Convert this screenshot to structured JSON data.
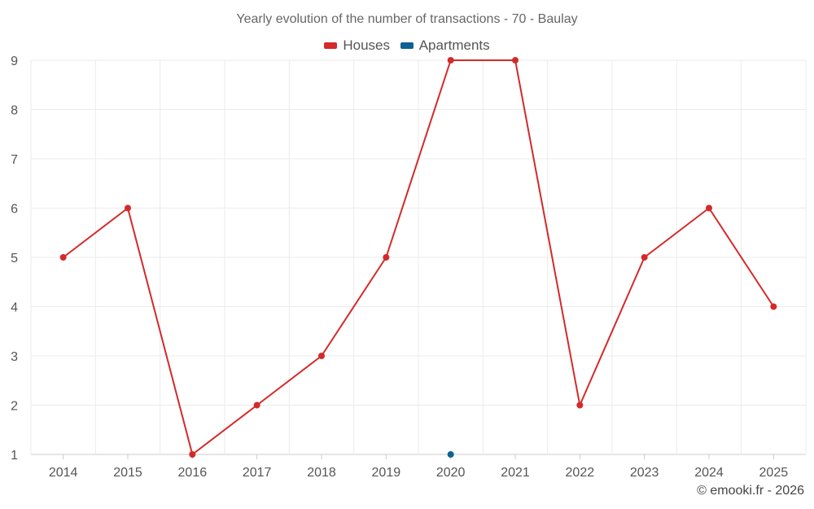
{
  "colors": {
    "houses": "#d32a2a",
    "apartments": "#0d6193",
    "grid": "#ebebeb",
    "axis": "#cccccc"
  },
  "chart_data": {
    "type": "line",
    "title": "Yearly evolution of the number of transactions - 70 - Baulay",
    "categories": [
      "2014",
      "2015",
      "2016",
      "2017",
      "2018",
      "2019",
      "2020",
      "2021",
      "2022",
      "2023",
      "2024",
      "2025"
    ],
    "series": [
      {
        "name": "Houses",
        "color": "#d32a2a",
        "values": [
          5,
          6,
          1,
          2,
          3,
          5,
          9,
          9,
          2,
          5,
          6,
          4
        ]
      },
      {
        "name": "Apartments",
        "color": "#0d6193",
        "values": [
          null,
          null,
          null,
          null,
          null,
          null,
          1,
          null,
          null,
          null,
          null,
          null
        ]
      }
    ],
    "ylim": [
      1,
      9
    ],
    "yticks": [
      1,
      2,
      3,
      4,
      5,
      6,
      7,
      8,
      9
    ],
    "grid": true,
    "legend": "top-center"
  },
  "footer": {
    "copyright": "© emooki.fr - 2026"
  }
}
